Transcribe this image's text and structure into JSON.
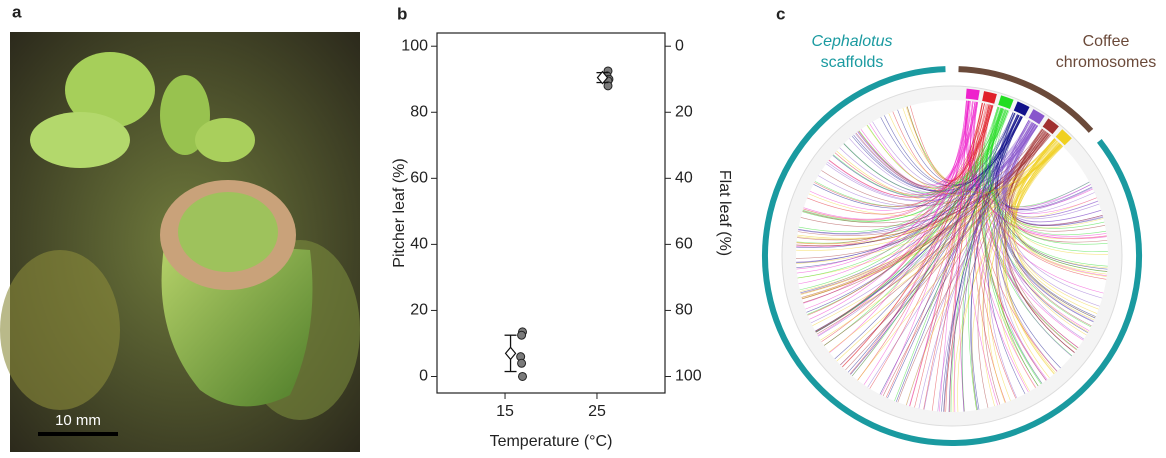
{
  "panels": {
    "a": {
      "label": "a",
      "scale_bar": "10 mm"
    },
    "b": {
      "label": "b"
    },
    "c": {
      "label": "c",
      "left_label": [
        "Cephalotus",
        "scaffolds"
      ],
      "right_label": [
        "Coffee",
        "chromosomes"
      ]
    }
  },
  "chart_data": {
    "type": "scatter",
    "xlabel": "Temperature (°C)",
    "ylabel": "Pitcher leaf (%)",
    "y2label": "Flat leaf (%)",
    "xlim": [
      7.6,
      32.4
    ],
    "xticks": [
      15,
      25
    ],
    "ylim": [
      -5,
      104
    ],
    "yticks": [
      0,
      20,
      40,
      60,
      80,
      100
    ],
    "y2lim": [
      105,
      -4
    ],
    "y2ticks": [
      0,
      20,
      40,
      60,
      80,
      100
    ],
    "series": [
      {
        "color": "#7a7a7a",
        "x": [
          16.9,
          16.8,
          16.7,
          16.8,
          16.9,
          26.2,
          26.1,
          26.3,
          26.2,
          26.2
        ],
        "values": [
          13.5,
          12.5,
          6,
          4,
          0,
          92.5,
          91,
          90,
          89.5,
          88
        ]
      },
      {
        "color": "#ffffff",
        "marker": "diamond",
        "x": [
          15.6,
          25.6
        ],
        "values": [
          7,
          90.5
        ],
        "errors": [
          5.5,
          1.5
        ]
      }
    ]
  }
}
